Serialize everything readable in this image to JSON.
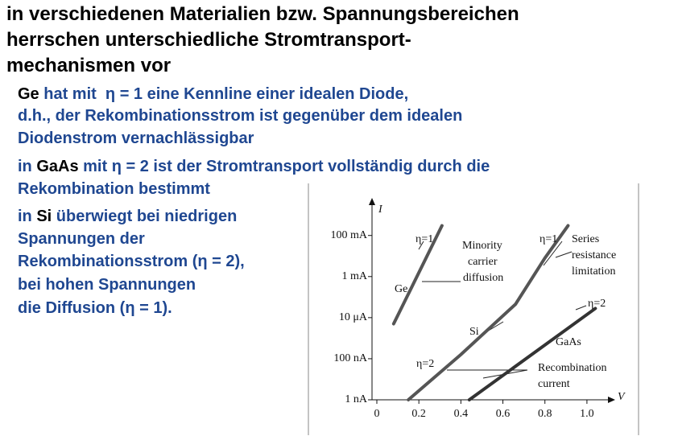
{
  "heading": [
    "in verschiedenen Materialien bzw. Spannungsbereichen",
    "herrschen unterschiedliche Stromtransport-",
    "mechanismen vor"
  ],
  "bullets": [
    {
      "lines": [
        [
          {
            "text": "Ge",
            "color": "#000000"
          },
          {
            "text": " hat mit  η = 1 eine Kennline einer idealen Diode,",
            "color": "#1f4791"
          }
        ],
        [
          {
            "text": "d.h., der Rekombinationsstrom ist gegenüber dem idealen",
            "color": "#1f4791"
          }
        ],
        [
          {
            "text": "Diodenstrom vernachlässigbar",
            "color": "#1f4791"
          }
        ]
      ]
    },
    {
      "lines": [
        [
          {
            "text": "in ",
            "color": "#1f4791"
          },
          {
            "text": "GaAs",
            "color": "#000000"
          },
          {
            "text": " mit η = 2 ist der Stromtransport vollständig durch die",
            "color": "#1f4791"
          }
        ],
        [
          {
            "text": "Rekombination bestimmt",
            "color": "#1f4791"
          }
        ]
      ]
    },
    {
      "lines": [
        [
          {
            "text": "in ",
            "color": "#1f4791"
          },
          {
            "text": "Si",
            "color": "#000000"
          },
          {
            "text": " überwiegt bei niedrigen",
            "color": "#1f4791"
          }
        ],
        [
          {
            "text": "Spannungen der",
            "color": "#1f4791"
          }
        ],
        [
          {
            "text": "Rekombinationsstrom (η = 2),",
            "color": "#1f4791"
          }
        ],
        [
          {
            "text": "bei hohen Spannungen",
            "color": "#1f4791"
          }
        ],
        [
          {
            "text": "die Diffusion (η = 1).",
            "color": "#1f4791"
          }
        ]
      ]
    }
  ],
  "chart_data": {
    "type": "line",
    "ylabel": "I",
    "xlabel": "V",
    "log_y": true,
    "xlim": [
      0,
      1.1
    ],
    "xticks": [
      0,
      0.2,
      0.4,
      0.6,
      0.8,
      {
        "value": 1,
        "label": "1.0"
      }
    ],
    "ylim": [
      1e-09,
      3
    ],
    "yticks": [
      {
        "value": 1e-09,
        "label": "1 nA"
      },
      {
        "value": 1e-07,
        "label": "100 nA"
      },
      {
        "value": 1e-05,
        "label": "10 μA"
      },
      {
        "value": 0.001,
        "label": "1 mA"
      },
      {
        "value": 0.1,
        "label": "100 mA"
      }
    ],
    "series": [
      {
        "name": "Ge",
        "color": "#555555",
        "x": [
          0.08,
          0.31
        ],
        "values": [
          5e-06,
          0.3
        ]
      },
      {
        "name": "Si",
        "color": "#555555",
        "x": [
          0.15,
          0.4,
          0.66,
          0.8,
          0.91
        ],
        "values": [
          1e-09,
          1.6e-07,
          4.5e-05,
          0.008,
          0.3
        ]
      },
      {
        "name": "GaAs",
        "color": "#333333",
        "x": [
          0.44,
          1.04
        ],
        "values": [
          1e-09,
          2.8e-05
        ]
      }
    ],
    "annotations": [
      "η=1",
      "Minority",
      "carrier",
      "diffusion",
      "η=1",
      "Series",
      "resistance",
      "limitation",
      "η=2",
      "Si",
      "GaAs",
      "η=2",
      "Recombination",
      "current"
    ]
  }
}
